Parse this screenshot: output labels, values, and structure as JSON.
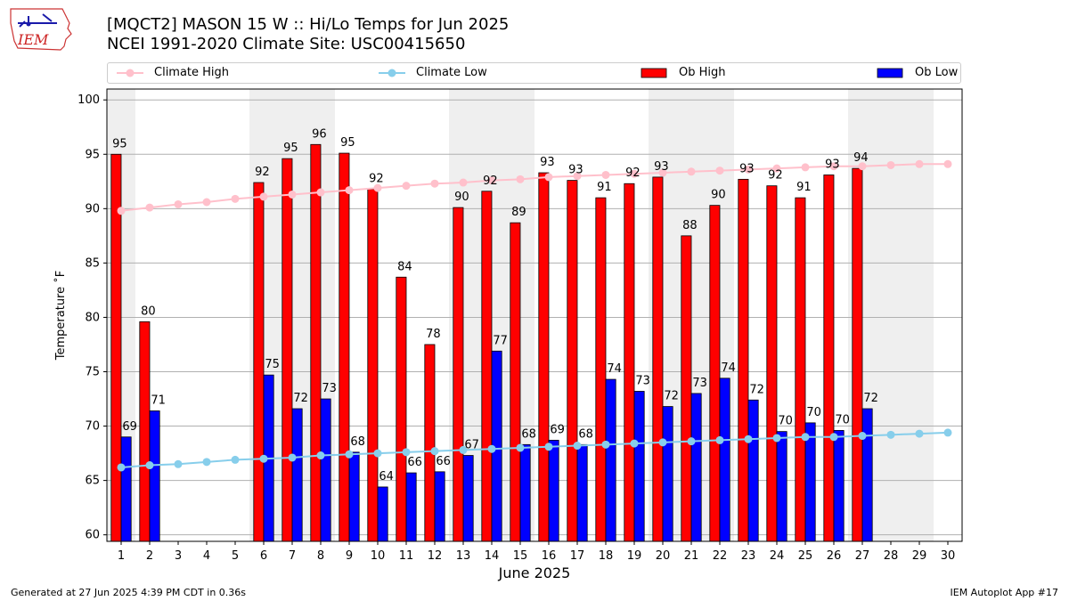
{
  "header": {
    "title_line1": "[MQCT2] MASON 15 W :: Hi/Lo Temps for Jun 2025",
    "title_line2": "NCEI 1991-2020 Climate Site: USC00415650"
  },
  "logo": {
    "text": "IEM"
  },
  "legend": {
    "placement": "top",
    "items": [
      {
        "label": "Climate High",
        "color": "#ffc0cb",
        "kind": "line"
      },
      {
        "label": "Climate Low",
        "color": "#87ceeb",
        "kind": "line"
      },
      {
        "label": "Ob High",
        "color": "#ff0000",
        "kind": "bar"
      },
      {
        "label": "Ob Low",
        "color": "#0000ff",
        "kind": "bar"
      }
    ]
  },
  "footer": {
    "left": "Generated at 27 Jun 2025 4:39 PM CDT in 0.36s",
    "right": "IEM Autoplot App #17"
  },
  "chart_data": {
    "type": "bar",
    "xlabel": "June 2025",
    "ylabel": "Temperature $^\\circ$F",
    "xlim": [
      0.5,
      30.5
    ],
    "ylim": [
      59.4,
      101
    ],
    "yticks": [
      60,
      65,
      70,
      75,
      80,
      85,
      90,
      95,
      100
    ],
    "grid": true,
    "weekend_shading": [
      [
        1,
        1
      ],
      [
        6,
        8
      ],
      [
        13,
        15
      ],
      [
        20,
        22
      ],
      [
        27,
        29
      ]
    ],
    "x": [
      1,
      2,
      3,
      4,
      5,
      6,
      7,
      8,
      9,
      10,
      11,
      12,
      13,
      14,
      15,
      16,
      17,
      18,
      19,
      20,
      21,
      22,
      23,
      24,
      25,
      26,
      27,
      28,
      29,
      30
    ],
    "series": [
      {
        "name": "Ob High",
        "type": "bar",
        "color": "#ff0000",
        "values": [
          95,
          79.6,
          null,
          null,
          null,
          92.4,
          94.6,
          95.9,
          95.1,
          91.8,
          83.7,
          77.5,
          90.1,
          91.6,
          88.7,
          93.3,
          92.6,
          91,
          92.3,
          92.9,
          87.5,
          90.3,
          92.7,
          92.1,
          91,
          93.1,
          93.7,
          null,
          null,
          null
        ],
        "labels": [
          "95",
          "80",
          "",
          "",
          "",
          "92",
          "95",
          "96",
          "95",
          "92",
          "84",
          "78",
          "90",
          "92",
          "89",
          "93",
          "93",
          "91",
          "92",
          "93",
          "88",
          "90",
          "93",
          "92",
          "91",
          "93",
          "94",
          "",
          "",
          ""
        ]
      },
      {
        "name": "Ob Low",
        "type": "bar",
        "color": "#0000ff",
        "values": [
          69,
          71.4,
          null,
          null,
          null,
          74.7,
          71.6,
          72.5,
          67.6,
          64.4,
          65.7,
          65.8,
          67.3,
          76.9,
          68.3,
          68.7,
          68.3,
          74.3,
          73.2,
          71.8,
          73,
          74.4,
          72.4,
          69.5,
          70.3,
          69.6,
          71.6,
          null,
          null,
          null
        ],
        "labels": [
          "69",
          "71",
          "",
          "",
          "",
          "75",
          "72",
          "73",
          "68",
          "64",
          "66",
          "66",
          "67",
          "77",
          "68",
          "69",
          "68",
          "74",
          "73",
          "72",
          "73",
          "74",
          "72",
          "70",
          "70",
          "70",
          "72",
          "",
          "",
          ""
        ]
      },
      {
        "name": "Climate High",
        "type": "line",
        "color": "#ffc0cb",
        "values": [
          89.8,
          90.1,
          90.4,
          90.6,
          90.9,
          91.1,
          91.3,
          91.5,
          91.7,
          91.9,
          92.1,
          92.3,
          92.4,
          92.6,
          92.7,
          92.9,
          93,
          93.1,
          93.2,
          93.3,
          93.4,
          93.5,
          93.6,
          93.7,
          93.8,
          93.9,
          93.9,
          94,
          94.1,
          94.1
        ]
      },
      {
        "name": "Climate Low",
        "type": "line",
        "color": "#87ceeb",
        "values": [
          66.2,
          66.4,
          66.5,
          66.7,
          66.9,
          67,
          67.1,
          67.3,
          67.4,
          67.5,
          67.6,
          67.7,
          67.8,
          67.9,
          68,
          68.1,
          68.2,
          68.3,
          68.4,
          68.5,
          68.6,
          68.7,
          68.8,
          68.9,
          69,
          69,
          69.1,
          69.2,
          69.3,
          69.4
        ]
      }
    ]
  }
}
